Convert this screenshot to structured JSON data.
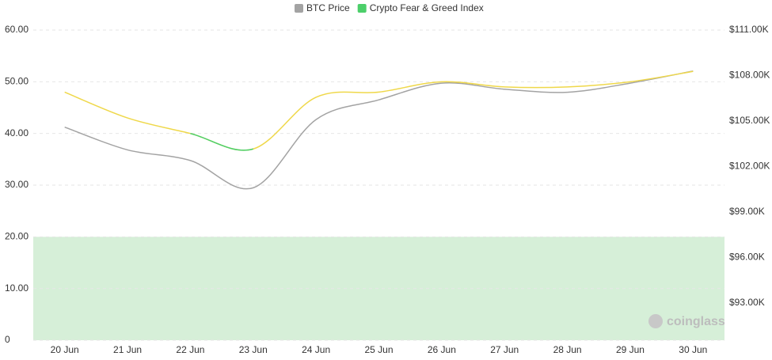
{
  "chart_data": {
    "type": "line",
    "categories": [
      "20 Jun",
      "21 Jun",
      "22 Jun",
      "23 Jun",
      "24 Jun",
      "25 Jun",
      "26 Jun",
      "27 Jun",
      "28 Jun",
      "29 Jun",
      "30 Jun"
    ],
    "series": [
      {
        "name": "BTC Price",
        "color": "#a3a3a3",
        "axis": "y2",
        "values": [
          104600,
          103100,
          102400,
          100600,
          105100,
          106400,
          107500,
          107100,
          106900,
          107500,
          108300
        ]
      },
      {
        "name": "Crypto Fear & Greed Index",
        "color": "#4ccf6a",
        "line_color": "#efd84a",
        "values": [
          48,
          43,
          40,
          37,
          47,
          48,
          50,
          49,
          49,
          50,
          52
        ]
      }
    ],
    "ylim": [
      0,
      60
    ],
    "yticks": [
      {
        "value": 0,
        "label": "0"
      },
      {
        "value": 10,
        "label": "10.00"
      },
      {
        "value": 20,
        "label": "20.00"
      },
      {
        "value": 30,
        "label": "30.00"
      },
      {
        "value": 40,
        "label": "40.00"
      },
      {
        "value": 50,
        "label": "50.00"
      },
      {
        "value": 60,
        "label": "60.00"
      }
    ],
    "y2lim": [
      90550,
      111000
    ],
    "y2ticks": [
      {
        "value": 93000,
        "label": "$93.00K"
      },
      {
        "value": 96000,
        "label": "$96.00K"
      },
      {
        "value": 99000,
        "label": "$99.00K"
      },
      {
        "value": 102000,
        "label": "$102.00K"
      },
      {
        "value": 105000,
        "label": "$105.00K"
      },
      {
        "value": 108000,
        "label": "$108.00K"
      },
      {
        "value": 111000,
        "label": "$111.00K"
      }
    ],
    "fear_band": {
      "from": 0,
      "to": 20,
      "color": "#d6efd8"
    },
    "fear_threshold": 40,
    "grid": true,
    "legend": "top",
    "watermark": "coinglass"
  }
}
